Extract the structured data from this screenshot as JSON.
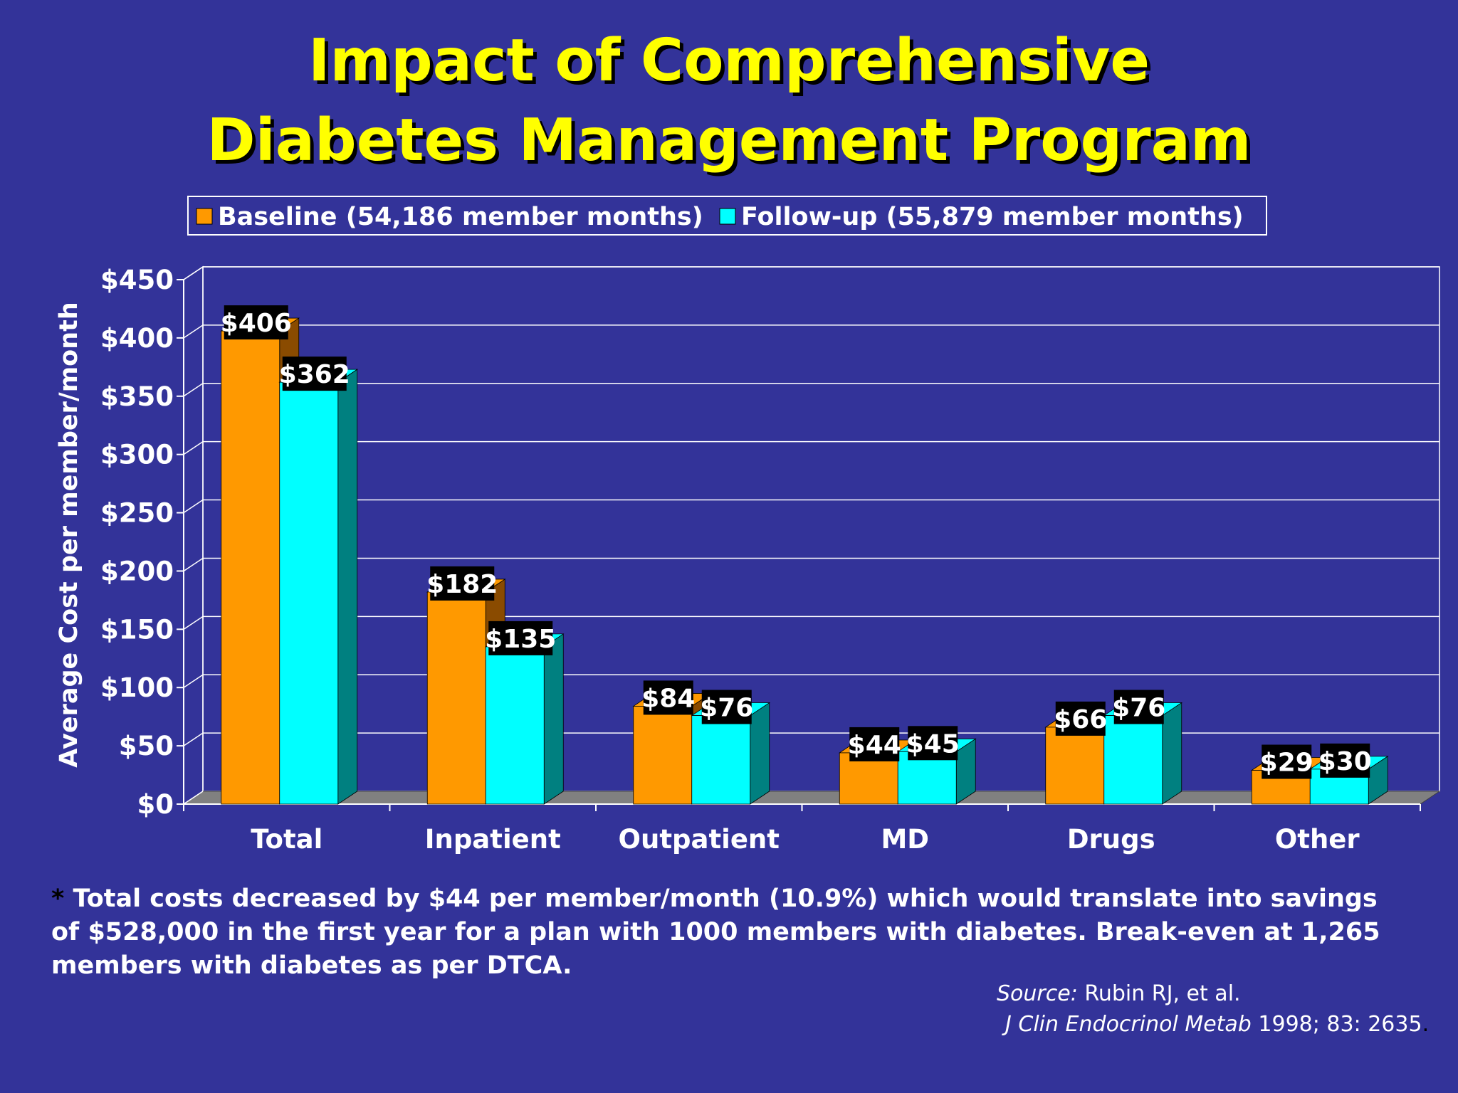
{
  "title": {
    "line1": "Impact of Comprehensive",
    "line2": "Diabetes Management Program"
  },
  "chart_data": {
    "type": "bar",
    "categories": [
      "Total",
      "Inpatient",
      "Outpatient",
      "MD",
      "Drugs",
      "Other"
    ],
    "series": [
      {
        "name": "Baseline (54,186 member months)",
        "values": [
          406,
          182,
          84,
          44,
          66,
          29
        ],
        "labels": [
          "$406",
          "$182",
          "$84",
          "$44",
          "$66",
          "$29"
        ],
        "color": "#ff9900",
        "side_color": "#8a4b00"
      },
      {
        "name": "Follow-up (55,879 member months)",
        "values": [
          362,
          135,
          76,
          45,
          76,
          30
        ],
        "labels": [
          "$362",
          "$135",
          "$76",
          "$45",
          "$76",
          "$30"
        ],
        "color": "#00ffff",
        "side_color": "#008080"
      }
    ],
    "ylabel": "Average Cost per member/month",
    "ylim": [
      0,
      450
    ],
    "ytick_values": [
      0,
      50,
      100,
      150,
      200,
      250,
      300,
      350,
      400,
      450
    ],
    "ytick_labels": [
      "$0",
      "$50",
      "$100",
      "$150",
      "$200",
      "$250",
      "$300",
      "$350",
      "$400",
      "$450"
    ],
    "grid": true,
    "legend_position": "top-center",
    "floor_color": "#808080"
  },
  "footnote": {
    "star": "*",
    "text": " Total costs decreased by $44 per member/month (10.9%) which would translate into savings of $528,000 in the first year for a plan with 1000 members with diabetes. Break-even at 1,265 members with diabetes as per DTCA."
  },
  "source": {
    "label": "Source:",
    "authors": " Rubin RJ, et al.",
    "journal": "J Clin Endocrinol Metab",
    "citation": " 1998; 83: 2635",
    "end": "."
  }
}
